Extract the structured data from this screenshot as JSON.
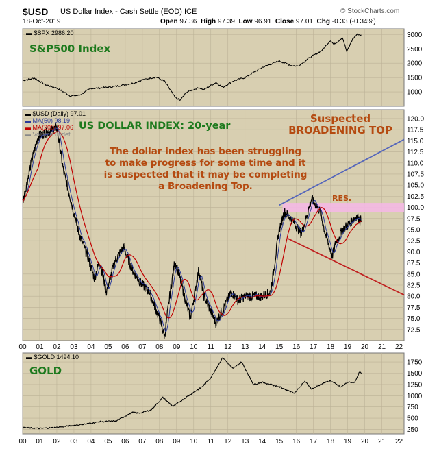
{
  "header": {
    "ticker": "$USD",
    "name": "US Dollar Index - Cash Settle (EOD)",
    "exchange": "ICE",
    "date": "18-Oct-2019",
    "open_label": "Open",
    "open": "97.36",
    "high_label": "High",
    "high": "97.39",
    "low_label": "Low",
    "low": "96.91",
    "close_label": "Close",
    "close": "97.01",
    "chg_label": "Chg",
    "chg": "-0.33 (-0.34%)",
    "source": "© StockCharts.com"
  },
  "chart_data": [
    {
      "type": "line",
      "legend": "$SPX 2986.20",
      "title": "S&P500 Index",
      "ylim": [
        500,
        3200
      ],
      "yticks": [
        1000,
        1500,
        2000,
        2500,
        3000
      ],
      "x": [
        2000.0,
        2000.7,
        2001.3,
        2002.0,
        2002.8,
        2003.3,
        2004.0,
        2004.8,
        2005.5,
        2006.5,
        2007.0,
        2007.8,
        2008.3,
        2008.9,
        2009.2,
        2009.6,
        2010.3,
        2010.6,
        2011.3,
        2011.7,
        2012.3,
        2013.0,
        2014.0,
        2015.0,
        2015.7,
        2016.1,
        2016.8,
        2017.5,
        2018.0,
        2018.2,
        2018.7,
        2018.95,
        2019.3,
        2019.55,
        2019.8
      ],
      "y": [
        1400,
        1480,
        1260,
        1130,
        860,
        880,
        1120,
        1150,
        1200,
        1310,
        1420,
        1520,
        1370,
        820,
        700,
        1000,
        1150,
        1080,
        1330,
        1160,
        1380,
        1500,
        1850,
        2080,
        1920,
        1900,
        2200,
        2450,
        2800,
        2650,
        2900,
        2400,
        2850,
        3000,
        2986
      ],
      "series_color": "#000000",
      "title_color": "#1e7a1e"
    },
    {
      "type": "line",
      "title": "US DOLLAR INDEX: 20-year",
      "legend": [
        {
          "label": "$USD (Daily) 97.01",
          "color": "#000000"
        },
        {
          "label": "MA(50) 98.19",
          "color": "#2a3a9a"
        },
        {
          "label": "MA(200) 97.06",
          "color": "#c00000"
        },
        {
          "label": "Volume undef",
          "color": "#888888"
        }
      ],
      "ylim": [
        70,
        122
      ],
      "yticks": [
        72.5,
        75.0,
        77.5,
        80.0,
        82.5,
        85.0,
        87.5,
        90.0,
        92.5,
        95.0,
        97.5,
        100.0,
        102.5,
        105.0,
        107.5,
        110.0,
        112.5,
        115.0,
        117.5,
        120.0
      ],
      "ytick_labels": [
        "72.5",
        "75.0",
        "77.5",
        "80.0",
        "82.5",
        "85.0",
        "87.5",
        "90.0",
        "92.5",
        "95.0",
        "97.5",
        "100.0",
        "102.5",
        "105.0",
        "107.5",
        "110.0",
        "112.5",
        "115.0",
        "117.5",
        "120.0"
      ],
      "x": [
        2000.0,
        2000.5,
        2000.9,
        2001.5,
        2002.0,
        2002.4,
        2002.8,
        2003.3,
        2003.8,
        2004.2,
        2004.5,
        2004.9,
        2005.4,
        2005.9,
        2006.4,
        2006.9,
        2007.4,
        2008.0,
        2008.3,
        2008.6,
        2008.9,
        2009.2,
        2009.8,
        2010.3,
        2010.6,
        2011.3,
        2011.7,
        2012.2,
        2012.6,
        2013.0,
        2013.5,
        2014.0,
        2014.5,
        2015.0,
        2015.3,
        2015.8,
        2016.3,
        2016.9,
        2017.4,
        2017.7,
        2018.1,
        2018.3,
        2018.7,
        2019.0,
        2019.5,
        2019.8
      ],
      "y": [
        101,
        110,
        116,
        117,
        118,
        108,
        102,
        94,
        89,
        84,
        88,
        81,
        88,
        91,
        86,
        83,
        81,
        75,
        71,
        80,
        88,
        84,
        75,
        86,
        80,
        74,
        77,
        81,
        79,
        80,
        80,
        80,
        81,
        95,
        99,
        97,
        94,
        102,
        99,
        94,
        89,
        92,
        95,
        96,
        98,
        97
      ],
      "annotations": {
        "comment": [
          "The dollar index has been struggling",
          "to make progress for some time and it",
          "is suspected that it may be completing",
          "a Broadening Top."
        ],
        "pattern_title": [
          "Suspected",
          "BROADENING TOP"
        ],
        "resistance_label": "RES.",
        "resistance_zone": [
          99.0,
          101.0
        ],
        "upper_trendline": {
          "x": [
            2015.0,
            2022.3
          ],
          "y": [
            100.5,
            115.3
          ]
        },
        "lower_trendline": {
          "x": [
            2015.5,
            2022.3
          ],
          "y": [
            93.0,
            80.3
          ]
        }
      },
      "colors": {
        "price": "#000000",
        "ma50": "#2a3a9a",
        "ma200": "#c00000",
        "upper_line": "#5566bb",
        "lower_line": "#c02020",
        "zone": "#f4b8e4",
        "text": "#b54a10",
        "title": "#1e7a1e"
      }
    },
    {
      "type": "line",
      "legend": "$GOLD 1494.10",
      "title": "GOLD",
      "ylim": [
        150,
        1950
      ],
      "yticks": [
        250,
        500,
        750,
        1000,
        1250,
        1500,
        1750
      ],
      "x": [
        2000.0,
        2001.0,
        2001.9,
        2002.8,
        2003.5,
        2004.5,
        2005.5,
        2006.4,
        2006.8,
        2007.5,
        2008.2,
        2008.8,
        2009.5,
        2010.5,
        2011.0,
        2011.7,
        2012.3,
        2012.8,
        2013.5,
        2014.0,
        2015.0,
        2015.9,
        2016.5,
        2016.9,
        2017.6,
        2018.0,
        2018.6,
        2019.0,
        2019.4,
        2019.7,
        2019.8
      ],
      "y": [
        290,
        270,
        290,
        330,
        360,
        420,
        440,
        630,
        610,
        680,
        960,
        760,
        950,
        1200,
        1400,
        1850,
        1600,
        1750,
        1250,
        1300,
        1200,
        1060,
        1320,
        1150,
        1280,
        1330,
        1190,
        1300,
        1290,
        1530,
        1494
      ],
      "title_color": "#1e7a1e"
    }
  ],
  "x_axis_labels": [
    "00",
    "01",
    "02",
    "03",
    "04",
    "05",
    "06",
    "07",
    "08",
    "09",
    "10",
    "11",
    "12",
    "13",
    "14",
    "15",
    "16",
    "17",
    "18",
    "19",
    "20",
    "21",
    "22"
  ]
}
